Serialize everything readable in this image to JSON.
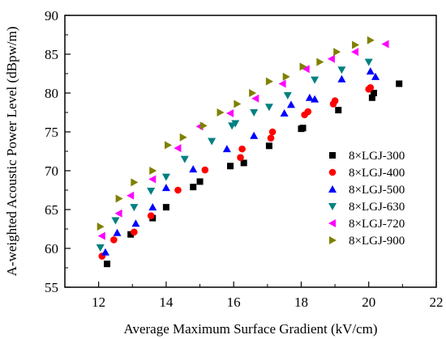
{
  "chart_data": {
    "type": "scatter",
    "title": "",
    "xlabel": "Average Maximum Surface Gradient  (kV/cm)",
    "ylabel": "A-weighted Acoustic Power Level (dBpw/m)",
    "xlim": [
      11,
      22
    ],
    "ylim": [
      55,
      90
    ],
    "xticks": [
      12,
      14,
      16,
      18,
      20,
      22
    ],
    "yticks": [
      55,
      60,
      65,
      70,
      75,
      80,
      85,
      90
    ],
    "grid": false,
    "legend_position": "bottom-right",
    "series": [
      {
        "name": "8×LGJ-300",
        "marker": "square",
        "color": "#000000",
        "x": [
          12.25,
          12.95,
          13.6,
          14.0,
          14.8,
          15.0,
          15.9,
          16.3,
          17.05,
          18.0,
          18.05,
          19.1,
          20.1,
          20.15,
          20.9
        ],
        "y": [
          58.0,
          61.8,
          63.9,
          65.3,
          67.9,
          68.6,
          70.6,
          71.0,
          73.2,
          75.4,
          75.5,
          77.8,
          79.4,
          80.0,
          81.2
        ]
      },
      {
        "name": "8×LGJ-400",
        "marker": "circle",
        "color": "#ff0000",
        "x": [
          12.1,
          12.45,
          13.05,
          13.55,
          14.35,
          15.15,
          16.2,
          16.25,
          17.1,
          17.15,
          18.1,
          18.2,
          18.95,
          19.0,
          20.0,
          20.05
        ],
        "y": [
          59.0,
          61.1,
          62.1,
          64.2,
          67.5,
          70.1,
          71.7,
          72.8,
          74.2,
          75.0,
          77.2,
          77.6,
          78.6,
          79.0,
          80.5,
          80.7
        ]
      },
      {
        "name": "8×LGJ-500",
        "marker": "triangle-up",
        "color": "#0000ff",
        "x": [
          12.2,
          12.55,
          13.1,
          13.6,
          14.0,
          14.8,
          15.8,
          16.6,
          17.5,
          17.7,
          18.25,
          18.4,
          19.2,
          20.05,
          20.2
        ],
        "y": [
          59.5,
          62.0,
          63.2,
          65.3,
          67.8,
          70.2,
          72.8,
          74.5,
          77.4,
          78.5,
          79.4,
          79.2,
          81.8,
          82.8,
          82.1
        ]
      },
      {
        "name": "8×LGJ-630",
        "marker": "triangle-down",
        "color": "#008080",
        "x": [
          12.05,
          12.5,
          13.05,
          13.55,
          14.0,
          14.55,
          15.35,
          15.95,
          16.05,
          16.6,
          17.05,
          17.6,
          18.4,
          19.2,
          20.0
        ],
        "y": [
          60.1,
          63.6,
          65.3,
          67.4,
          69.2,
          71.5,
          73.8,
          75.8,
          76.1,
          77.5,
          78.2,
          79.7,
          81.7,
          83.0,
          84.0
        ]
      },
      {
        "name": "8×LGJ-720",
        "marker": "triangle-left",
        "color": "#ff00ff",
        "x": [
          12.1,
          12.6,
          12.95,
          13.6,
          14.35,
          15.0,
          15.9,
          16.65,
          17.45,
          18.15,
          18.9,
          19.6,
          20.5
        ],
        "y": [
          61.6,
          64.5,
          66.8,
          68.9,
          72.9,
          75.7,
          77.4,
          79.3,
          81.2,
          83.1,
          84.4,
          85.3,
          86.3
        ]
      },
      {
        "name": "8×LGJ-900",
        "marker": "triangle-right",
        "color": "#808000",
        "x": [
          12.05,
          12.6,
          13.05,
          13.6,
          14.05,
          14.5,
          15.1,
          15.6,
          16.1,
          16.55,
          17.05,
          17.55,
          18.05,
          18.55,
          19.05,
          19.6,
          20.05
        ],
        "y": [
          62.8,
          66.4,
          68.5,
          70.0,
          73.3,
          74.3,
          75.8,
          77.5,
          78.6,
          80.0,
          81.5,
          82.1,
          83.4,
          84.0,
          85.3,
          86.2,
          86.8
        ]
      }
    ]
  }
}
